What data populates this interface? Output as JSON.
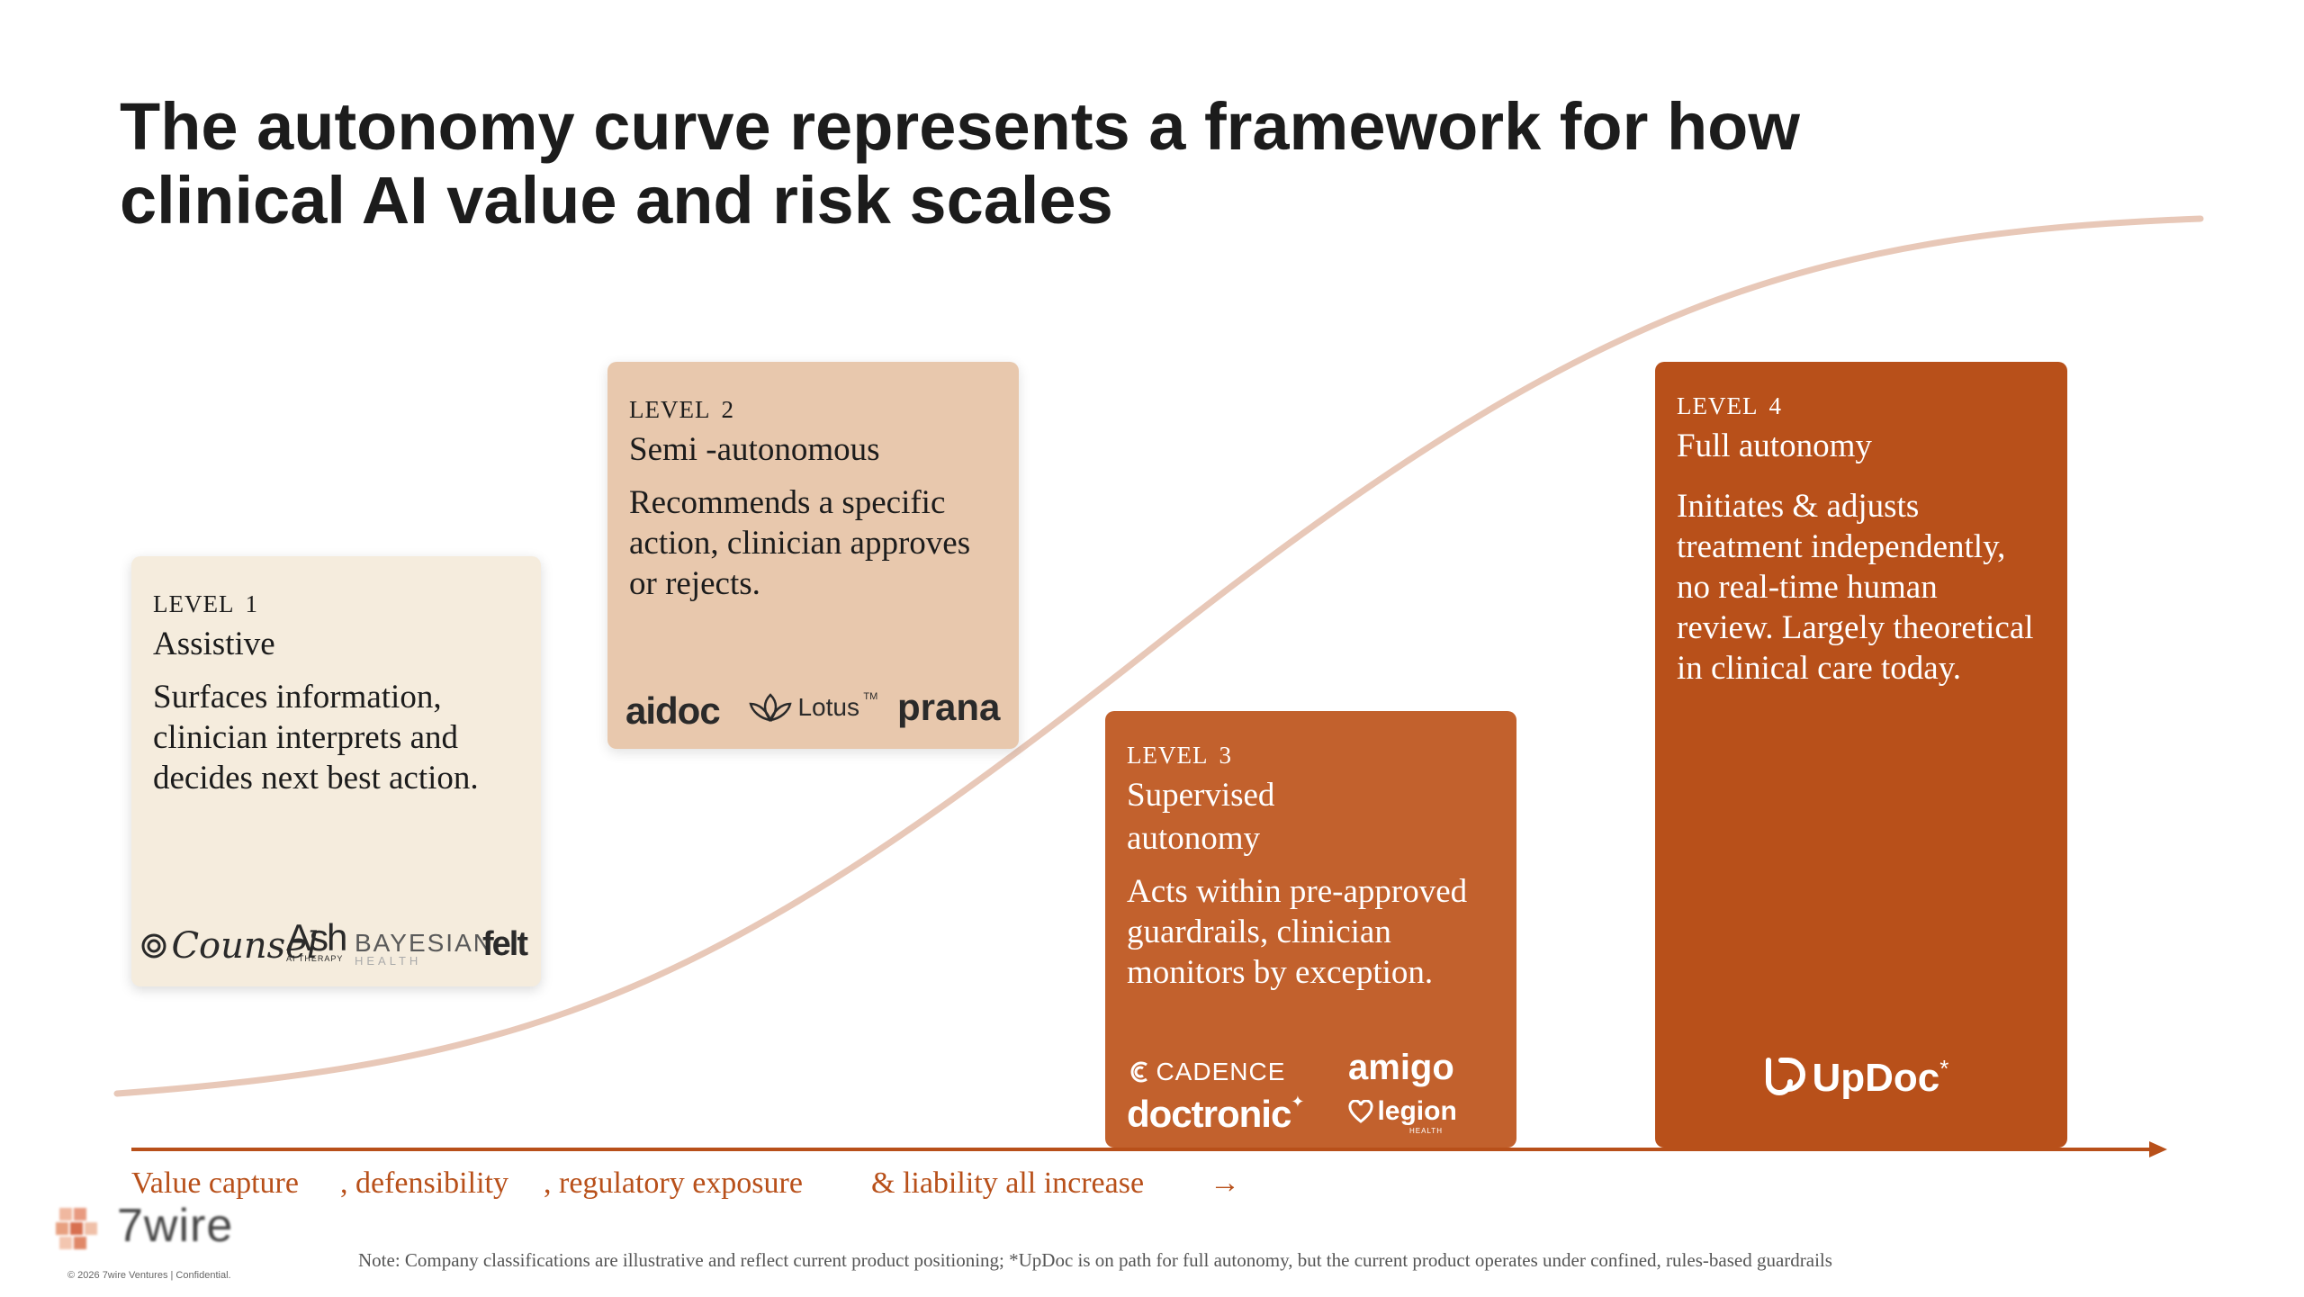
{
  "title_line1": "The autonomy curve represents a framework for how",
  "title_line2": "clinical AI value and risk scales",
  "levels": [
    {
      "level_label": "LEVEL",
      "level_number": "1",
      "name": "Assistive",
      "description": "Surfaces information, clinician interprets and decides next best action.",
      "logos": [
        "Counsel",
        "Ash",
        "AI THERAPY",
        "BAYESIAN",
        "HEALTH",
        "felt"
      ]
    },
    {
      "level_label": "LEVEL",
      "level_number": "2",
      "name": "Semi -autonomous",
      "description": "Recommends a specific action, clinician approves or rejects.",
      "logos": [
        "aidoc",
        "Lotus",
        "prana"
      ]
    },
    {
      "level_label": "LEVEL",
      "level_number": "3",
      "name": "Supervised autonomy",
      "description": "Acts within pre-approved guardrails, clinician monitors by exception.",
      "logos": [
        "CADENCE",
        "amigo",
        "doctronic",
        "legion",
        "HEALTH"
      ]
    },
    {
      "level_label": "LEVEL",
      "level_number": "4",
      "name": "Full autonomy",
      "description": "Initiates & adjusts treatment independently, no real-time human review. Largely theoretical in clinical care today.",
      "logos": [
        "UpDoc"
      ]
    }
  ],
  "axis": {
    "segments": [
      "Value capture",
      ", defensibility",
      ", regulatory exposure",
      "& liability all increase",
      "→"
    ]
  },
  "note": "Note: Company classifications are illustrative and reflect current product positioning; *UpDoc is on path for full autonomy, but the current product operates under confined, rules-based guardrails",
  "brand": {
    "name": "7wire",
    "copyright": "© 2026 7wire Ventures | Confidential."
  },
  "colors": {
    "level1_bg": "#f5ecdd",
    "level2_bg": "#e8c8ad",
    "level3_bg": "#c2612d",
    "level4_bg": "#b8501a",
    "curve": "#e8c8b8",
    "axis": "#b8501a"
  }
}
